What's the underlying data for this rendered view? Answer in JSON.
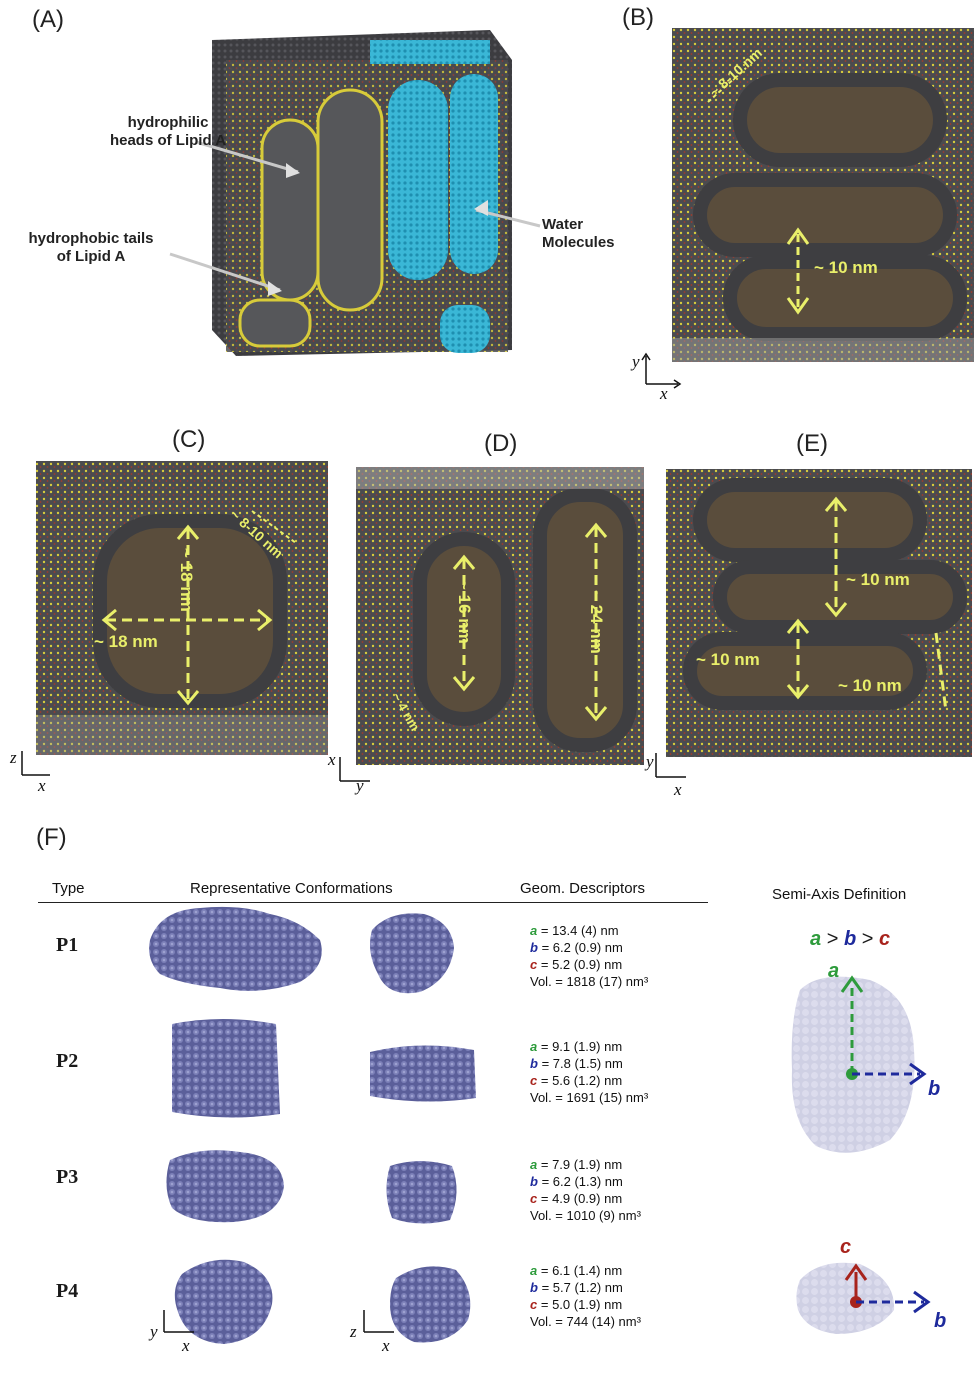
{
  "panel_labels": {
    "a": "(A)",
    "b": "(B)",
    "c": "(C)",
    "d": "(D)",
    "e": "(E)",
    "f": "(F)"
  },
  "panel_a": {
    "heads_label": "hydrophilic\nheads of Lipid A",
    "tails_label": "hydrophobic tails\nof Lipid A",
    "water_label": "Water\nMolecules"
  },
  "panel_b": {
    "dim1": "~ 8-10 nm",
    "dim2": "~ 10 nm",
    "axes": {
      "v": "y",
      "h": "x"
    }
  },
  "panel_c": {
    "dim1": "~ 8-10 nm",
    "dim2": "~ 18 nm",
    "dim3": "~ 18 nm",
    "axes": {
      "v": "z",
      "h": "x"
    }
  },
  "panel_d": {
    "dim1": "~ 16 nm",
    "dim2": "~ 24 nm",
    "dim3": "~ 4 nm",
    "axes": {
      "v": "x",
      "h": "y"
    }
  },
  "panel_e": {
    "dim1": "~ 10 nm",
    "dim2": "~ 10 nm",
    "dim3": "~ 10 nm",
    "axes": {
      "v": "y",
      "h": "x"
    }
  },
  "panel_f": {
    "headers": {
      "type": "Type",
      "conformations": "Representative Conformations",
      "descriptors": "Geom. Descriptors",
      "semi_axis": "Semi-Axis Definition"
    },
    "rows": [
      {
        "type": "P1",
        "a": "= 13.4 (4) nm",
        "b": "= 6.2 (0.9) nm",
        "c": "= 5.2 (0.9) nm",
        "vol": "Vol. = 1818 (17) nm³"
      },
      {
        "type": "P2",
        "a": "= 9.1 (1.9) nm",
        "b": "= 7.8 (1.5) nm",
        "c": "= 5.6 (1.2) nm",
        "vol": "Vol. = 1691 (15) nm³"
      },
      {
        "type": "P3",
        "a": "= 7.9 (1.9) nm",
        "b": "= 6.2 (1.3) nm",
        "c": "= 4.9 (0.9) nm",
        "vol": "Vol. = 1010 (9) nm³"
      },
      {
        "type": "P4",
        "a": "= 6.1 (1.4) nm",
        "b": "= 5.7 (1.2) nm",
        "c": "= 5.0 (1.9) nm",
        "vol": "Vol. = 744 (14) nm³"
      }
    ],
    "axis_names": {
      "a": "a",
      "b": "b",
      "c": "c"
    },
    "inequality_gt": ">",
    "bottom_axes": [
      {
        "v": "y",
        "h": "x"
      },
      {
        "v": "z",
        "h": "x"
      }
    ],
    "colors": {
      "a": "#2e9b3c",
      "b": "#1e2a9c",
      "c": "#a8231c",
      "blob": "#5b5f9a",
      "lipid_grey": "#4a4a4e",
      "lipid_yellow": "#e7d64a",
      "water": "#3ab7d6"
    }
  }
}
